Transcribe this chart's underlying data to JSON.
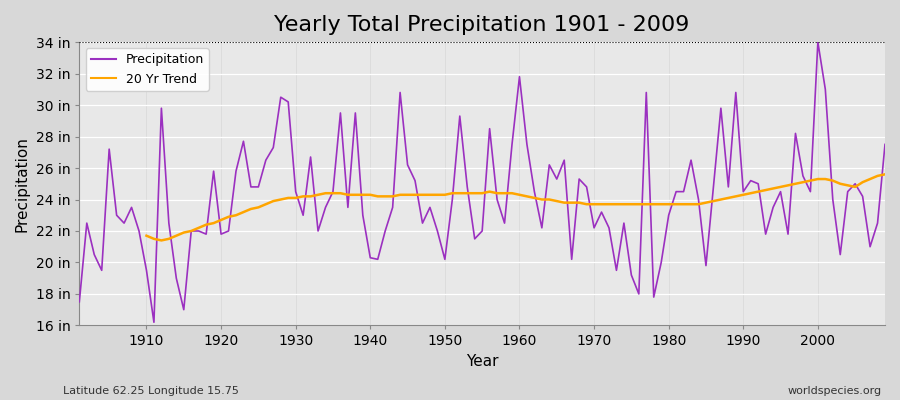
{
  "title": "Yearly Total Precipitation 1901 - 2009",
  "xlabel": "Year",
  "ylabel": "Precipitation",
  "footnote_left": "Latitude 62.25 Longitude 15.75",
  "footnote_right": "worldspecies.org",
  "years": [
    1901,
    1902,
    1903,
    1904,
    1905,
    1906,
    1907,
    1908,
    1909,
    1910,
    1911,
    1912,
    1913,
    1914,
    1915,
    1916,
    1917,
    1918,
    1919,
    1920,
    1921,
    1922,
    1923,
    1924,
    1925,
    1926,
    1927,
    1928,
    1929,
    1930,
    1931,
    1932,
    1933,
    1934,
    1935,
    1936,
    1937,
    1938,
    1939,
    1940,
    1941,
    1942,
    1943,
    1944,
    1945,
    1946,
    1947,
    1948,
    1949,
    1950,
    1951,
    1952,
    1953,
    1954,
    1955,
    1956,
    1957,
    1958,
    1959,
    1960,
    1961,
    1962,
    1963,
    1964,
    1965,
    1966,
    1967,
    1968,
    1969,
    1970,
    1971,
    1972,
    1973,
    1974,
    1975,
    1976,
    1977,
    1978,
    1979,
    1980,
    1981,
    1982,
    1983,
    1984,
    1985,
    1986,
    1987,
    1988,
    1989,
    1990,
    1991,
    1992,
    1993,
    1994,
    1995,
    1996,
    1997,
    1998,
    1999,
    2000,
    2001,
    2002,
    2003,
    2004,
    2005,
    2006,
    2007,
    2008,
    2009
  ],
  "precip_in": [
    17.5,
    22.5,
    20.5,
    19.5,
    27.2,
    23.0,
    22.5,
    23.5,
    22.0,
    19.5,
    16.2,
    29.8,
    22.5,
    19.0,
    17.0,
    22.0,
    22.0,
    21.8,
    25.8,
    21.8,
    22.0,
    25.8,
    27.7,
    24.8,
    24.8,
    26.5,
    27.3,
    30.5,
    30.2,
    24.5,
    23.0,
    26.7,
    22.0,
    23.5,
    24.5,
    29.5,
    23.5,
    29.5,
    23.0,
    20.3,
    20.2,
    22.0,
    23.5,
    30.8,
    26.2,
    25.2,
    22.5,
    23.5,
    22.0,
    20.2,
    24.0,
    29.3,
    24.8,
    21.5,
    22.0,
    28.5,
    24.0,
    22.5,
    27.5,
    31.8,
    27.5,
    24.5,
    22.2,
    26.2,
    25.3,
    26.5,
    20.2,
    25.3,
    24.8,
    22.2,
    23.2,
    22.2,
    19.5,
    22.5,
    19.2,
    18.0,
    30.8,
    17.8,
    20.0,
    23.0,
    24.5,
    24.5,
    26.5,
    24.0,
    19.8,
    24.8,
    29.8,
    24.8,
    30.8,
    24.5,
    25.2,
    25.0,
    21.8,
    23.5,
    24.5,
    21.8,
    28.2,
    25.5,
    24.5,
    34.0,
    31.0,
    24.0,
    20.5,
    24.5,
    25.0,
    24.2,
    21.0,
    22.5,
    27.5
  ],
  "trend_years": [
    1910,
    1911,
    1912,
    1913,
    1914,
    1915,
    1916,
    1917,
    1918,
    1919,
    1920,
    1921,
    1922,
    1923,
    1924,
    1925,
    1926,
    1927,
    1928,
    1929,
    1930,
    1931,
    1932,
    1933,
    1934,
    1935,
    1936,
    1937,
    1938,
    1939,
    1940,
    1941,
    1942,
    1943,
    1944,
    1945,
    1946,
    1947,
    1948,
    1949,
    1950,
    1951,
    1952,
    1953,
    1954,
    1955,
    1956,
    1957,
    1958,
    1959,
    1960,
    1961,
    1962,
    1963,
    1964,
    1965,
    1966,
    1967,
    1968,
    1969,
    1970,
    1971,
    1972,
    1973,
    1974,
    1975,
    1976,
    1977,
    1978,
    1979,
    1980,
    1981,
    1982,
    1983,
    1984,
    1985,
    1986,
    1987,
    1988,
    1989,
    1990,
    1991,
    1992,
    1993,
    1994,
    1995,
    1996,
    1997,
    1998,
    1999,
    2000,
    2001,
    2002,
    2003,
    2004,
    2005,
    2006,
    2007,
    2008,
    2009
  ],
  "trend_in": [
    21.7,
    21.5,
    21.4,
    21.5,
    21.7,
    21.9,
    22.0,
    22.2,
    22.4,
    22.5,
    22.7,
    22.9,
    23.0,
    23.2,
    23.4,
    23.5,
    23.7,
    23.9,
    24.0,
    24.1,
    24.1,
    24.2,
    24.2,
    24.3,
    24.4,
    24.4,
    24.4,
    24.3,
    24.3,
    24.3,
    24.3,
    24.2,
    24.2,
    24.2,
    24.3,
    24.3,
    24.3,
    24.3,
    24.3,
    24.3,
    24.3,
    24.4,
    24.4,
    24.4,
    24.4,
    24.4,
    24.5,
    24.4,
    24.4,
    24.4,
    24.3,
    24.2,
    24.1,
    24.0,
    24.0,
    23.9,
    23.8,
    23.8,
    23.8,
    23.7,
    23.7,
    23.7,
    23.7,
    23.7,
    23.7,
    23.7,
    23.7,
    23.7,
    23.7,
    23.7,
    23.7,
    23.7,
    23.7,
    23.7,
    23.7,
    23.8,
    23.9,
    24.0,
    24.1,
    24.2,
    24.3,
    24.4,
    24.5,
    24.6,
    24.7,
    24.8,
    24.9,
    25.0,
    25.1,
    25.2,
    25.3,
    25.3,
    25.2,
    25.0,
    24.9,
    24.8,
    25.1,
    25.3,
    25.5,
    25.6
  ],
  "precip_color": "#9B30C0",
  "trend_color": "#FFA500",
  "ylim": [
    16,
    34
  ],
  "yticks": [
    16,
    18,
    20,
    22,
    24,
    26,
    28,
    30,
    32,
    34
  ],
  "ytick_labels": [
    "16 in",
    "18 in",
    "20 in",
    "22 in",
    "24 in",
    "26 in",
    "28 in",
    "30 in",
    "32 in",
    "34 in"
  ],
  "xtick_years": [
    1910,
    1920,
    1930,
    1940,
    1950,
    1960,
    1970,
    1980,
    1990,
    2000
  ],
  "title_fontsize": 16,
  "axis_fontsize": 10,
  "legend_fontsize": 9
}
